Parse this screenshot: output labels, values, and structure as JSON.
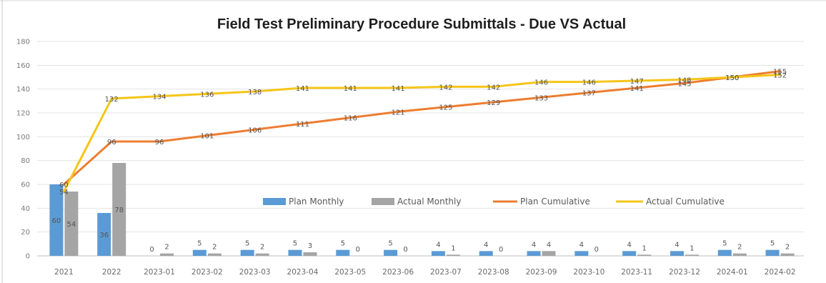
{
  "chart_data": {
    "type": "bar",
    "title": "Field Test Preliminary Procedure Submittals  - Due VS Actual",
    "xlabel": "",
    "ylabel": "",
    "ylim": [
      0,
      180
    ],
    "yticks": [
      0,
      20,
      40,
      60,
      80,
      100,
      120,
      140,
      160,
      180
    ],
    "grid": true,
    "legend_position": "middle",
    "categories": [
      "2021",
      "2022",
      "2023-01",
      "2023-02",
      "2023-03",
      "2023-04",
      "2023-05",
      "2023-06",
      "2023-07",
      "2023-08",
      "2023-09",
      "2023-10",
      "2023-11",
      "2023-12",
      "2024-01",
      "2024-02"
    ],
    "series": [
      {
        "name": "Plan Monthly",
        "kind": "bar",
        "color": "#5b9bd5",
        "values": [
          60,
          36,
          0,
          5,
          5,
          5,
          5,
          5,
          4,
          4,
          4,
          4,
          4,
          4,
          5,
          5
        ]
      },
      {
        "name": "Actual Monthly",
        "kind": "bar",
        "color": "#a5a5a5",
        "values": [
          54,
          78,
          2,
          2,
          2,
          3,
          0,
          0,
          1,
          0,
          4,
          0,
          1,
          1,
          2,
          2
        ]
      },
      {
        "name": "Plan Cumulative",
        "kind": "line",
        "color": "#ed7d31",
        "values": [
          60,
          96,
          96,
          101,
          106,
          111,
          116,
          121,
          125,
          129,
          133,
          137,
          141,
          145,
          150,
          155
        ]
      },
      {
        "name": "Actual Cumulative",
        "kind": "line",
        "color": "#f5c518",
        "values": [
          54,
          132,
          134,
          136,
          138,
          141,
          141,
          141,
          142,
          142,
          146,
          146,
          147,
          148,
          150,
          152
        ]
      }
    ]
  }
}
